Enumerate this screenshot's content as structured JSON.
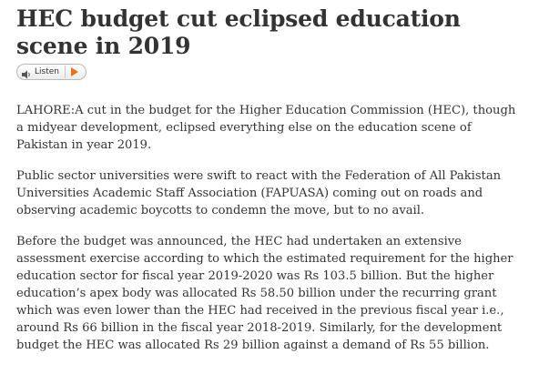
{
  "article": {
    "headline": "HEC budget cut eclipsed education scene in 2019",
    "listen_label": "Listen",
    "paragraphs": [
      "LAHORE:A cut in the budget for the Higher Education Commission (HEC), though a midyear development, eclipsed everything else on the education scene of Pakistan in year 2019.",
      "Public sector universities were swift to react with the Federation of All Pakistan Universities Academic Staff Association (FAPUASA) coming out on roads and observing academic boycotts to condemn the move, but to no avail.",
      "Before the budget was announced, the HEC had undertaken an extensive assessment exercise according to which the estimated requirement for the higher education sector for fiscal year 2019-2020 was Rs 103.5 billion. But the higher education’s apex body was allocated Rs 58.50 billion under the recurring grant which was even lower than the HEC had received in the previous fiscal year i.e., around Rs 66 billion in the fiscal year 2018-2019. Similarly, for the development budget the HEC was allocated Rs 29 billion against a demand of Rs 55 billion."
    ]
  },
  "colors": {
    "text": "#333333",
    "play_accent": "#e8731a"
  },
  "icons": {
    "speaker": "speaker-icon",
    "play": "play-icon"
  }
}
